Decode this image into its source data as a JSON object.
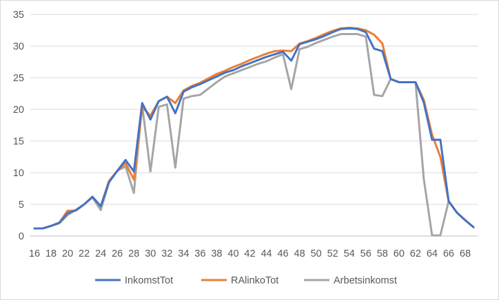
{
  "chart_data": {
    "type": "line",
    "title": "",
    "xlabel": "",
    "ylabel": "",
    "ylim": [
      0,
      35
    ],
    "yticks": [
      0,
      5,
      10,
      15,
      20,
      25,
      30,
      35
    ],
    "xticks": [
      16,
      18,
      20,
      22,
      24,
      26,
      28,
      30,
      32,
      34,
      36,
      38,
      40,
      42,
      44,
      46,
      48,
      50,
      52,
      54,
      56,
      58,
      60,
      62,
      64,
      66,
      68
    ],
    "grid": true,
    "legend_position": "bottom",
    "x": [
      16,
      17,
      18,
      19,
      20,
      21,
      22,
      23,
      24,
      25,
      26,
      27,
      28,
      29,
      30,
      31,
      32,
      33,
      34,
      35,
      36,
      37,
      38,
      39,
      40,
      41,
      42,
      43,
      44,
      45,
      46,
      47,
      48,
      49,
      50,
      51,
      52,
      53,
      54,
      55,
      56,
      57,
      58,
      59,
      60,
      61,
      62,
      63,
      64,
      65,
      66,
      67,
      68,
      69
    ],
    "series": [
      {
        "name": "InkomstTot",
        "color": "#4472C4",
        "values": [
          1.2,
          1.2,
          1.6,
          2.1,
          3.6,
          4.1,
          5.0,
          6.2,
          4.7,
          8.5,
          10.3,
          12.0,
          10.2,
          21.0,
          18.4,
          21.3,
          22.0,
          19.4,
          22.8,
          23.5,
          24.0,
          24.6,
          25.2,
          25.8,
          26.2,
          26.8,
          27.3,
          27.8,
          28.3,
          28.7,
          29.1,
          27.7,
          30.3,
          30.7,
          31.1,
          31.6,
          32.2,
          32.7,
          32.8,
          32.7,
          32.2,
          29.6,
          29.2,
          24.8,
          24.3,
          24.3,
          24.3,
          21.1,
          15.2,
          15.2,
          5.5,
          3.7,
          2.5,
          1.4
        ]
      },
      {
        "name": "RAlinkoTot",
        "color": "#ED7D31",
        "values": [
          1.2,
          1.2,
          1.6,
          2.1,
          4.0,
          4.0,
          5.0,
          6.2,
          4.7,
          8.7,
          10.3,
          11.5,
          8.9,
          20.4,
          19.0,
          21.3,
          22.0,
          21.0,
          23.0,
          23.7,
          24.2,
          24.9,
          25.6,
          26.1,
          26.7,
          27.2,
          27.8,
          28.3,
          28.8,
          29.2,
          29.3,
          29.2,
          30.4,
          30.8,
          31.3,
          31.9,
          32.4,
          32.8,
          32.9,
          32.8,
          32.5,
          31.8,
          30.4,
          24.8,
          24.3,
          24.3,
          24.3,
          21.5,
          16.0,
          12.5,
          5.5,
          3.7,
          2.5,
          1.4
        ]
      },
      {
        "name": "Arbetsinkomst",
        "color": "#A5A5A5",
        "values": [
          1.2,
          1.2,
          1.6,
          2.0,
          3.3,
          4.1,
          5.0,
          6.1,
          4.1,
          8.5,
          10.3,
          11.0,
          6.8,
          20.7,
          10.2,
          20.4,
          20.8,
          10.8,
          21.7,
          22.1,
          22.3,
          23.3,
          24.3,
          25.2,
          25.7,
          26.2,
          26.7,
          27.2,
          27.6,
          28.2,
          28.7,
          23.2,
          29.5,
          29.9,
          30.5,
          31.0,
          31.5,
          31.9,
          31.9,
          31.9,
          31.5,
          22.3,
          22.1,
          24.8,
          24.3,
          24.3,
          24.3,
          9.0,
          0.1,
          0.1,
          5.5,
          3.7,
          2.5,
          1.4
        ]
      }
    ]
  }
}
